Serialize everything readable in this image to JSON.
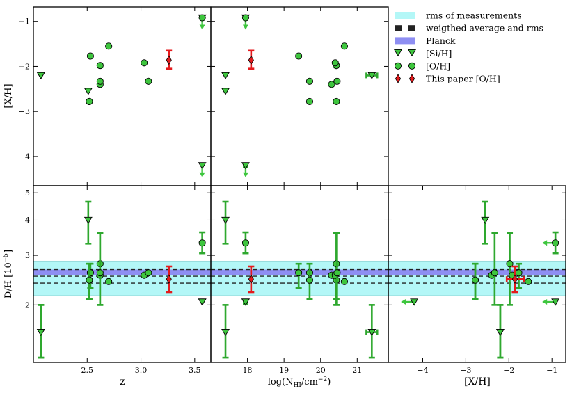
{
  "figure": {
    "ylabel_top": "[X/H]",
    "ylabel_bottom": "D/H [10",
    "ylabel_bottom_exp": "−5",
    "ylabel_bottom_close": "]",
    "xlabels": [
      "z",
      "log(N",
      "[X/H]"
    ],
    "xlabel_nhi_sub": "HI",
    "xlabel_nhi_unit": "/cm",
    "xlabel_nhi_exp": "−2",
    "xlabel_nhi_close": ")"
  },
  "legend": {
    "items": [
      {
        "label": "rms of measurements"
      },
      {
        "label": "weigthed average and rms"
      },
      {
        "label": "Planck"
      },
      {
        "label": "[Si/H]"
      },
      {
        "label": "[O/H]"
      },
      {
        "label": "This paper [O/H]"
      }
    ]
  },
  "chart_data": {
    "type": "scatter",
    "colors": {
      "green": "#3ec63e",
      "green_dark": "#2ea82e",
      "red": "#e41a1c",
      "cyan": "#b3f7f7",
      "cyan_edge": "#98dcdc",
      "planck": "#8e8ef2",
      "dash": "#222222"
    },
    "axes": {
      "xh": {
        "ylim": [
          -4.65,
          -0.68
        ],
        "yticks": [
          -1,
          -2,
          -3,
          -4
        ],
        "ytick_labels": [
          "−1",
          "−2",
          "−3",
          "−4"
        ]
      },
      "dh": {
        "ylim": [
          1.25,
          5.3
        ],
        "log": true,
        "yticks": [
          2,
          3,
          4,
          5
        ],
        "ytick_labels": [
          "2",
          "3",
          "4",
          "5"
        ]
      },
      "z": {
        "xlim": [
          2.0,
          3.65
        ],
        "xticks": [
          2.5,
          3.0,
          3.5
        ],
        "xtick_labels": [
          "2.5",
          "3.0",
          "3.5"
        ]
      },
      "nhi": {
        "xlim": [
          17.0,
          21.85
        ],
        "xticks": [
          18,
          19,
          20,
          21
        ],
        "xtick_labels": [
          "18",
          "19",
          "20",
          "21"
        ]
      },
      "met": {
        "xlim": [
          -4.8,
          -0.68
        ],
        "xticks": [
          -4,
          -3,
          -2,
          -1
        ],
        "xtick_labels": [
          "−4",
          "−3",
          "−2",
          "−1"
        ]
      }
    },
    "bands": {
      "rms": [
        2.16,
        2.86
      ],
      "planck": [
        2.55,
        2.67
      ],
      "wmean": 2.53,
      "wlow": 2.39,
      "whigh": 2.67
    },
    "series": [
      {
        "name": "[Si/H]",
        "points": [
          {
            "z": 2.07,
            "nhi": 17.4,
            "met": -2.2,
            "met_upper": false,
            "dh": 1.6,
            "dh_lo": 1.3,
            "dh_hi": 2.0,
            "nhi_err": 0,
            "met_err": 0,
            "metlim": false
          },
          {
            "z": 2.51,
            "nhi": 17.4,
            "met": -2.55,
            "met_upper": false,
            "dh": 4.0,
            "dh_lo": 3.3,
            "dh_hi": 4.65,
            "nhi_err": 0,
            "met_err": 0,
            "metlim": false
          },
          {
            "z": 3.57,
            "nhi": 17.95,
            "met": -0.92,
            "met_upper": true,
            "dh": 2.05,
            "dh_lo": 2.05,
            "dh_hi": 2.05,
            "nhi_err": 0.05,
            "met_err": 0,
            "metlim": true
          },
          {
            "z": 3.57,
            "nhi": 17.95,
            "met": -4.2,
            "met_upper": true,
            "dh": 2.05,
            "dh_lo": 2.05,
            "dh_hi": 2.05,
            "nhi_err": 0.05,
            "met_err": 0,
            "metlim": true
          },
          {
            "z": 2.07,
            "nhi": 21.4,
            "met": -2.2,
            "met_upper": false,
            "dh": 1.6,
            "dh_lo": 1.3,
            "dh_hi": 2.0,
            "nhi_err": 0.15,
            "met_err": 0,
            "metlim": false
          }
        ]
      },
      {
        "name": "[O/H]",
        "points": [
          {
            "z": 2.52,
            "nhi": 20.43,
            "met": -2.78,
            "dh": 2.45,
            "dh_lo": 2.1,
            "dh_hi": 2.8,
            "nhi_err": 0,
            "met_err": 0
          },
          {
            "z": 2.53,
            "nhi": 19.4,
            "met": -1.77,
            "dh": 2.6,
            "dh_lo": 2.3,
            "dh_hi": 2.8,
            "nhi_err": 0,
            "met_err": 0
          },
          {
            "z": 2.62,
            "nhi": 20.43,
            "met": -1.98,
            "dh": 2.8,
            "dh_lo": 2.0,
            "dh_hi": 3.6,
            "nhi_err": 0.05,
            "met_err": 0.1
          },
          {
            "z": 2.62,
            "nhi": 20.3,
            "met": -2.4,
            "dh": 2.55,
            "dh_lo": 2.55,
            "dh_hi": 2.55,
            "nhi_err": 0,
            "met_err": 0
          },
          {
            "z": 2.7,
            "nhi": 20.65,
            "met": -1.55,
            "dh": 2.42,
            "dh_lo": 2.42,
            "dh_hi": 2.42,
            "nhi_err": 0,
            "met_err": 0
          },
          {
            "z": 3.03,
            "nhi": 20.4,
            "met": -1.92,
            "dh": 2.55,
            "dh_lo": 2.55,
            "dh_hi": 2.55,
            "nhi_err": 0,
            "met_err": 0
          },
          {
            "z": 3.07,
            "nhi": 19.7,
            "met": -2.33,
            "dh": 2.6,
            "dh_lo": 2.6,
            "dh_hi": 2.6,
            "nhi_err": 0,
            "met_err": 0
          },
          {
            "z": 3.57,
            "nhi": 17.95,
            "met": -0.92,
            "dh": 3.32,
            "dh_lo": 3.05,
            "dh_hi": 3.62,
            "nhi_err": 0.05,
            "met_err": 0,
            "metlim": true
          },
          {
            "z": 2.52,
            "nhi": 19.7,
            "met": -2.78,
            "dh": 2.45,
            "dh_lo": 2.1,
            "dh_hi": 2.8,
            "nhi_err": 0,
            "met_err": 0
          },
          {
            "z": 2.62,
            "nhi": 20.45,
            "met": -2.33,
            "dh": 2.6,
            "dh_lo": 2.0,
            "dh_hi": 3.6,
            "nhi_err": 0,
            "met_err": 0
          }
        ]
      },
      {
        "name": "This paper [O/H]",
        "points": [
          {
            "z": 3.26,
            "nhi": 18.1,
            "met": -1.86,
            "dh": 2.47,
            "dh_lo": 2.22,
            "dh_hi": 2.74,
            "met_lo": -2.05,
            "met_hi": -1.65,
            "nhi_err": 0,
            "met_err": 0.2
          }
        ]
      }
    ]
  }
}
